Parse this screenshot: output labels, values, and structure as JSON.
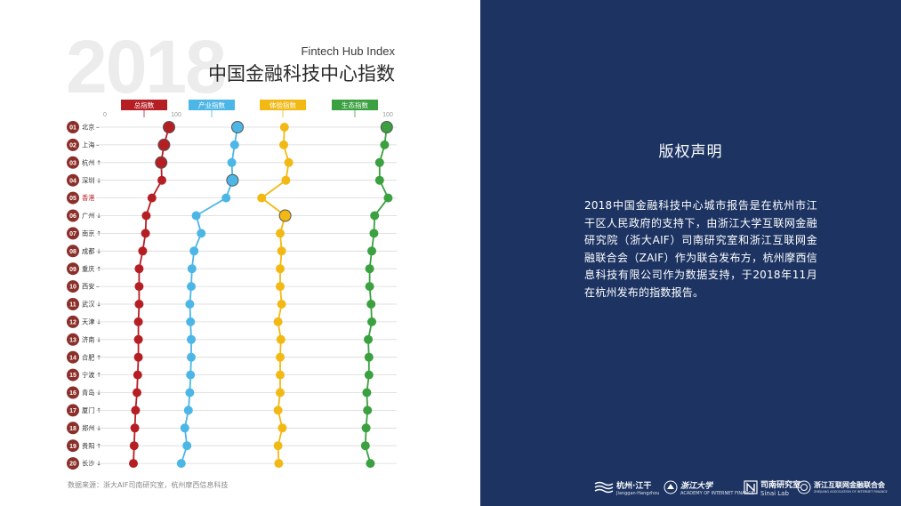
{
  "chart_data": {
    "type": "line",
    "year_watermark": "2018",
    "title_en": "Fintech Hub Index",
    "title": "中国金融科技中心指数",
    "axis_ticks": [
      "0",
      "100"
    ],
    "xlim": [
      0,
      100
    ],
    "source": "数据来源：浙大AIF司南研究室，杭州摩西信息科技",
    "rows": [
      {
        "rank": "01",
        "city": "北京",
        "trend": "–"
      },
      {
        "rank": "02",
        "city": "上海",
        "trend": "–"
      },
      {
        "rank": "03",
        "city": "杭州",
        "trend": "↑"
      },
      {
        "rank": "04",
        "city": "深圳",
        "trend": "↓"
      },
      {
        "rank": "05",
        "city": "香港",
        "trend": ""
      },
      {
        "rank": "06",
        "city": "广州",
        "trend": "↓"
      },
      {
        "rank": "07",
        "city": "南京",
        "trend": "↑"
      },
      {
        "rank": "08",
        "city": "成都",
        "trend": "↓"
      },
      {
        "rank": "09",
        "city": "重庆",
        "trend": "↑"
      },
      {
        "rank": "10",
        "city": "西安",
        "trend": "–"
      },
      {
        "rank": "11",
        "city": "武汉",
        "trend": "↓"
      },
      {
        "rank": "12",
        "city": "天津",
        "trend": "↓"
      },
      {
        "rank": "13",
        "city": "济南",
        "trend": "↓"
      },
      {
        "rank": "14",
        "city": "合肥",
        "trend": "↑"
      },
      {
        "rank": "15",
        "city": "宁波",
        "trend": "↑"
      },
      {
        "rank": "16",
        "city": "青岛",
        "trend": "↓"
      },
      {
        "rank": "17",
        "city": "厦门",
        "trend": "↑"
      },
      {
        "rank": "18",
        "city": "郑州",
        "trend": "↓"
      },
      {
        "rank": "19",
        "city": "贵阳",
        "trend": "↑"
      },
      {
        "rank": "20",
        "city": "长沙",
        "trend": "↓"
      }
    ],
    "series": [
      {
        "name": "总指数",
        "color": "#b51f24",
        "values": [
          90,
          83,
          79,
          80,
          66,
          58,
          57,
          53,
          48,
          48,
          48,
          47,
          47,
          47,
          46,
          45,
          43,
          42,
          41,
          40
        ],
        "highlight": [
          0,
          1,
          2
        ]
      },
      {
        "name": "产业指数",
        "color": "#4cb6e6",
        "values": [
          80,
          76,
          72,
          73,
          64,
          22,
          29,
          19,
          16,
          15,
          13,
          14,
          15,
          15,
          14,
          13,
          11,
          6,
          9,
          1
        ],
        "highlight": [
          0,
          3
        ]
      },
      {
        "name": "体验指数",
        "color": "#f2b915",
        "values": [
          46,
          45,
          52,
          48,
          14,
          47,
          40,
          42,
          40,
          40,
          42,
          37,
          41,
          40,
          40,
          40,
          37,
          43,
          37,
          38
        ],
        "highlight": [
          5
        ]
      },
      {
        "name": "生态指数",
        "color": "#3aa040",
        "values": [
          91,
          88,
          81,
          81,
          93,
          74,
          73,
          70,
          67,
          67,
          69,
          70,
          65,
          66,
          66,
          63,
          64,
          62,
          61,
          68
        ],
        "highlight": [
          0
        ]
      }
    ]
  },
  "notice": {
    "title": "版权声明",
    "body": "2018中国金融科技中心城市报告是在杭州市江干区人民政府的支持下，由浙江大学互联网金融研究院（浙大AIF）司南研究室和浙江互联网金融联合会（ZAIF）作为联合发布方，杭州摩西信息科技有限公司作为数据支持，于2018年11月在杭州发布的指数报告。"
  },
  "logos": [
    {
      "name": "杭州·江干",
      "sub": "Jianggan·Hangzhou"
    },
    {
      "name": "浙江大学",
      "sub": "ACADEMY OF INTERNET FINANCE"
    },
    {
      "name": "司南研究室",
      "sub": "Sinai Lab"
    },
    {
      "name": "浙江互联网金融联合会",
      "sub": "ZHEJIANG ASSOCIATION OF INTERNET FINANCE"
    }
  ]
}
